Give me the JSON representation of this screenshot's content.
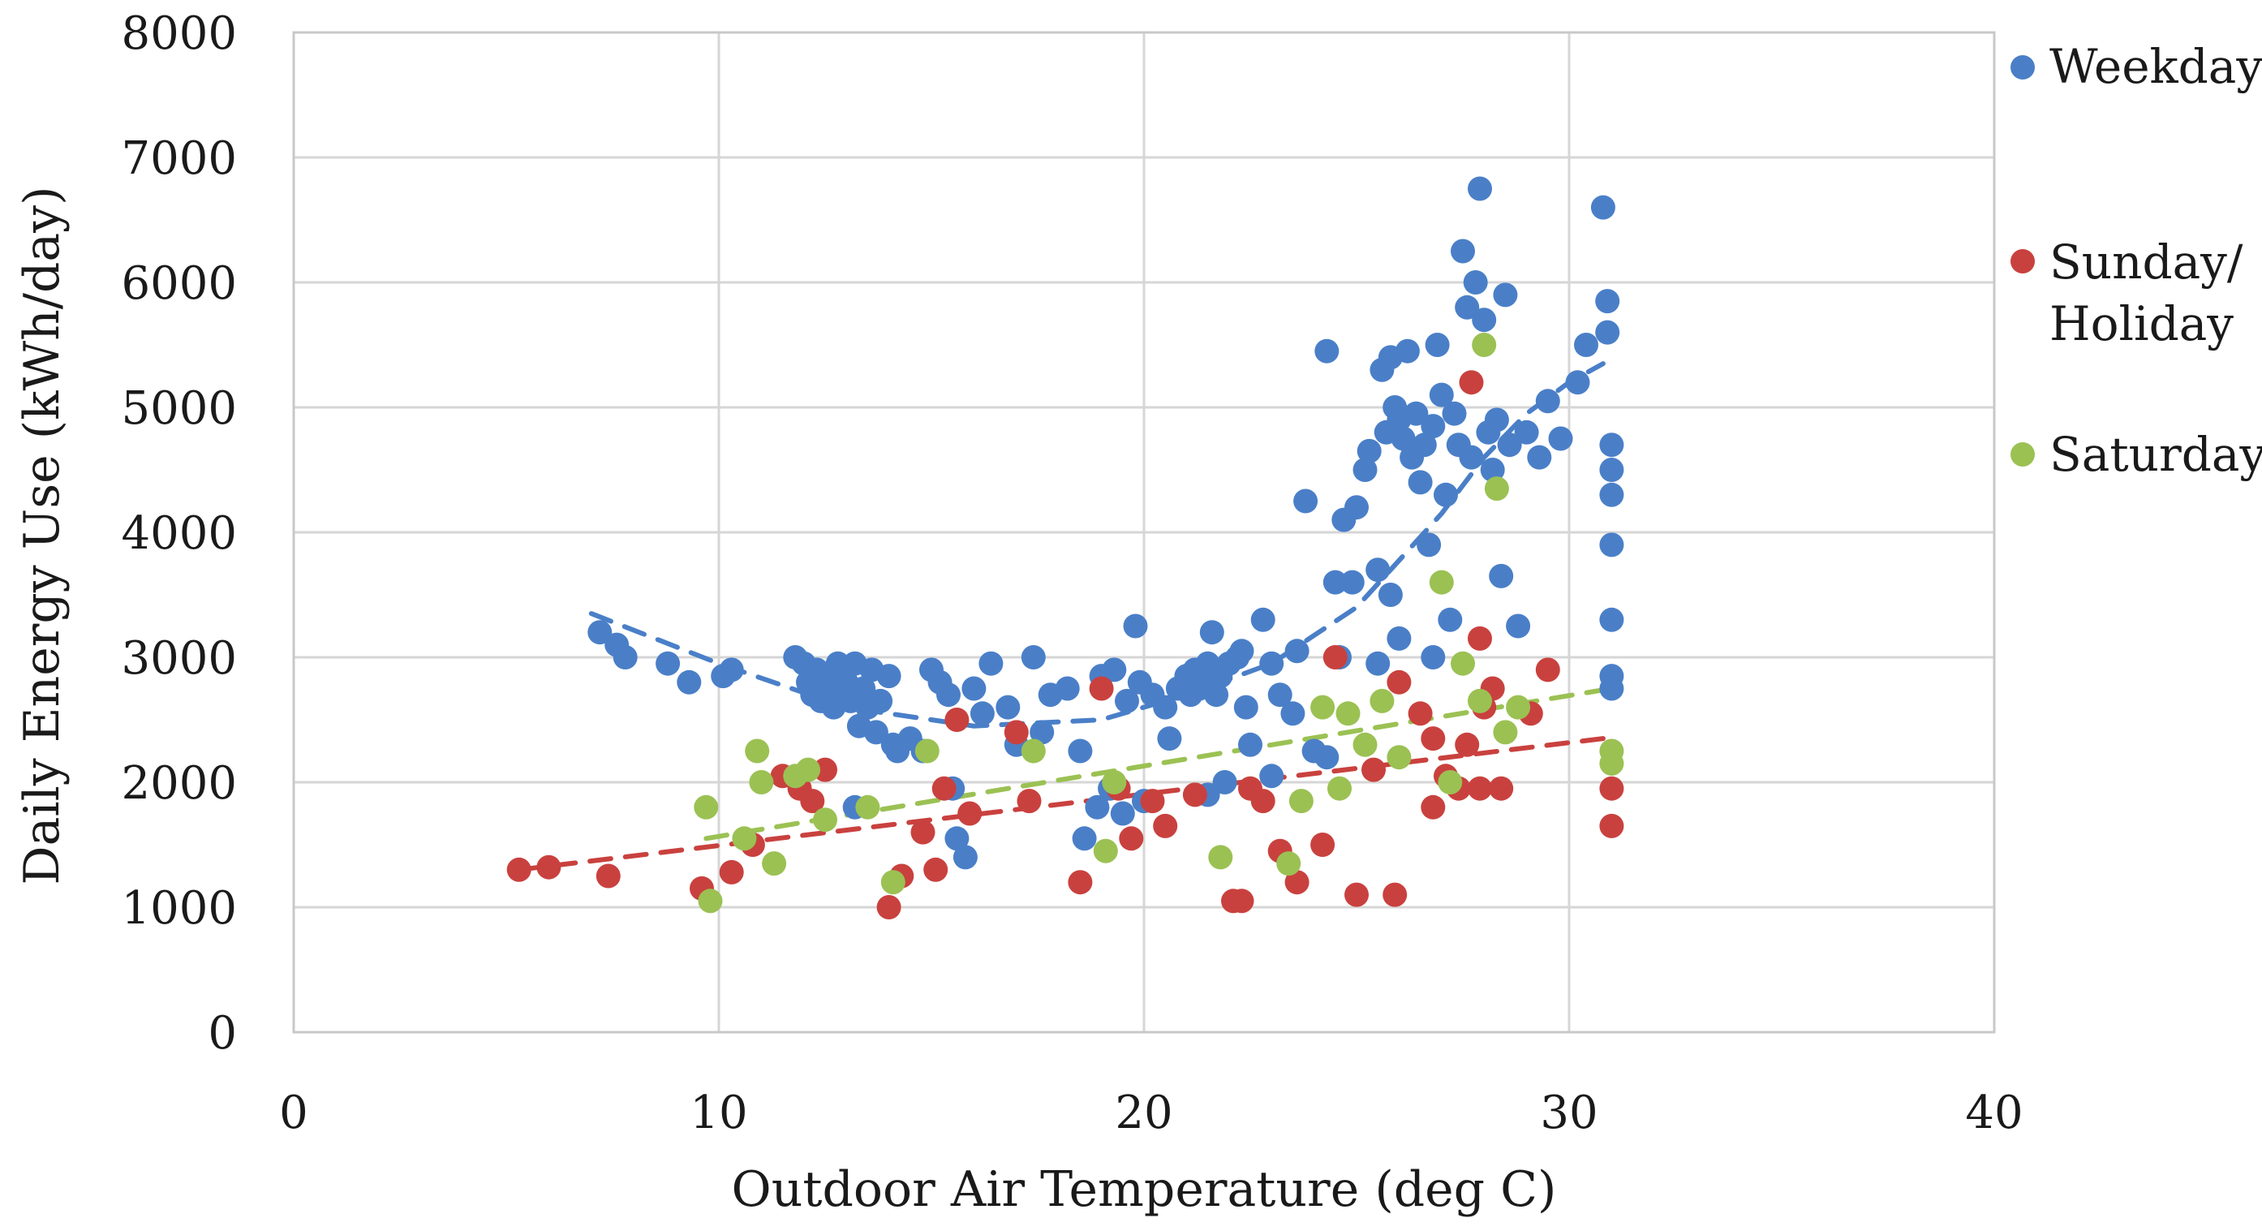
{
  "chart_data": {
    "type": "scatter",
    "title": "",
    "xlabel": "Outdoor Air Temperature (deg C)",
    "ylabel": "Daily Energy Use (kWh/day)",
    "xlim": [
      0,
      40
    ],
    "ylim": [
      0,
      8000
    ],
    "xticks": [
      0,
      10,
      20,
      30,
      40
    ],
    "yticks": [
      0,
      1000,
      2000,
      3000,
      4000,
      5000,
      6000,
      7000,
      8000
    ],
    "grid": true,
    "legend_position": "right",
    "series": [
      {
        "name": "Weekday",
        "color": "#4a7fc8",
        "points": [
          [
            7.2,
            3200
          ],
          [
            7.6,
            3100
          ],
          [
            7.8,
            3000
          ],
          [
            8.8,
            2950
          ],
          [
            9.3,
            2800
          ],
          [
            10.1,
            2850
          ],
          [
            10.3,
            2900
          ],
          [
            11.8,
            3000
          ],
          [
            12.0,
            2950
          ],
          [
            12.1,
            2800
          ],
          [
            12.2,
            2700
          ],
          [
            12.3,
            2900
          ],
          [
            12.4,
            2650
          ],
          [
            12.5,
            2850
          ],
          [
            12.6,
            2750
          ],
          [
            12.7,
            2600
          ],
          [
            12.8,
            2950
          ],
          [
            12.9,
            2700
          ],
          [
            13.0,
            2800
          ],
          [
            13.1,
            2650
          ],
          [
            13.2,
            2950
          ],
          [
            13.3,
            2450
          ],
          [
            13.4,
            2750
          ],
          [
            13.5,
            2600
          ],
          [
            13.6,
            2900
          ],
          [
            13.7,
            2400
          ],
          [
            13.8,
            2650
          ],
          [
            14.0,
            2850
          ],
          [
            14.1,
            2300
          ],
          [
            14.2,
            2250
          ],
          [
            14.5,
            2350
          ],
          [
            13.2,
            1800
          ],
          [
            14.8,
            2250
          ],
          [
            15.0,
            2900
          ],
          [
            15.2,
            2800
          ],
          [
            15.4,
            2700
          ],
          [
            15.5,
            1950
          ],
          [
            15.8,
            1400
          ],
          [
            15.6,
            1550
          ],
          [
            16.0,
            2750
          ],
          [
            16.2,
            2550
          ],
          [
            16.4,
            2950
          ],
          [
            16.8,
            2600
          ],
          [
            17.0,
            2300
          ],
          [
            17.4,
            3000
          ],
          [
            17.6,
            2400
          ],
          [
            17.8,
            2700
          ],
          [
            18.2,
            2750
          ],
          [
            18.5,
            2250
          ],
          [
            18.6,
            1550
          ],
          [
            19.0,
            2850
          ],
          [
            19.3,
            2900
          ],
          [
            19.6,
            2650
          ],
          [
            19.8,
            3250
          ],
          [
            19.9,
            2800
          ],
          [
            20.2,
            2700
          ],
          [
            20.5,
            2600
          ],
          [
            20.6,
            2350
          ],
          [
            20.8,
            2750
          ],
          [
            21.0,
            2850
          ],
          [
            21.1,
            2700
          ],
          [
            21.2,
            2900
          ],
          [
            21.3,
            2750
          ],
          [
            21.4,
            2800
          ],
          [
            21.5,
            2950
          ],
          [
            21.6,
            3200
          ],
          [
            21.7,
            2700
          ],
          [
            21.8,
            2850
          ],
          [
            22.0,
            2950
          ],
          [
            22.2,
            3000
          ],
          [
            22.4,
            2600
          ],
          [
            22.8,
            3300
          ],
          [
            23.0,
            2950
          ],
          [
            23.2,
            2700
          ],
          [
            23.5,
            2550
          ],
          [
            23.8,
            4250
          ],
          [
            24.0,
            2250
          ],
          [
            24.3,
            2200
          ],
          [
            24.5,
            3600
          ],
          [
            24.7,
            4100
          ],
          [
            24.9,
            3600
          ],
          [
            25.0,
            4200
          ],
          [
            24.3,
            5450
          ],
          [
            25.2,
            4500
          ],
          [
            25.3,
            4650
          ],
          [
            25.5,
            3700
          ],
          [
            25.6,
            5300
          ],
          [
            25.7,
            4800
          ],
          [
            25.8,
            5400
          ],
          [
            25.9,
            5000
          ],
          [
            26.0,
            4900
          ],
          [
            26.1,
            4750
          ],
          [
            26.2,
            5450
          ],
          [
            26.3,
            4600
          ],
          [
            26.4,
            4950
          ],
          [
            26.5,
            4400
          ],
          [
            26.6,
            4700
          ],
          [
            26.7,
            3900
          ],
          [
            26.8,
            4850
          ],
          [
            26.9,
            5500
          ],
          [
            27.0,
            5100
          ],
          [
            27.1,
            4300
          ],
          [
            27.2,
            3300
          ],
          [
            27.3,
            4950
          ],
          [
            27.4,
            4700
          ],
          [
            27.5,
            6250
          ],
          [
            27.6,
            5800
          ],
          [
            27.7,
            4600
          ],
          [
            27.8,
            6000
          ],
          [
            27.9,
            6750
          ],
          [
            28.0,
            5700
          ],
          [
            28.1,
            4800
          ],
          [
            28.2,
            4500
          ],
          [
            28.3,
            4900
          ],
          [
            28.4,
            3650
          ],
          [
            28.5,
            5900
          ],
          [
            28.6,
            4700
          ],
          [
            28.8,
            3250
          ],
          [
            29.0,
            4800
          ],
          [
            29.3,
            4600
          ],
          [
            29.5,
            5050
          ],
          [
            29.8,
            4750
          ],
          [
            30.2,
            5200
          ],
          [
            30.4,
            5500
          ],
          [
            30.8,
            6600
          ],
          [
            30.9,
            5850
          ],
          [
            30.9,
            5600
          ],
          [
            31.0,
            4700
          ],
          [
            31.0,
            4500
          ],
          [
            31.0,
            4300
          ],
          [
            31.0,
            3900
          ],
          [
            31.0,
            3300
          ],
          [
            31.0,
            2850
          ],
          [
            31.0,
            2750
          ],
          [
            26.0,
            3150
          ],
          [
            25.8,
            3500
          ],
          [
            24.6,
            3000
          ],
          [
            23.6,
            3050
          ],
          [
            22.3,
            3050
          ],
          [
            20.0,
            1850
          ],
          [
            19.5,
            1750
          ],
          [
            21.9,
            2000
          ],
          [
            22.5,
            2300
          ],
          [
            21.5,
            1900
          ],
          [
            23.0,
            2050
          ],
          [
            19.2,
            1950
          ],
          [
            18.9,
            1800
          ],
          [
            25.5,
            2950
          ],
          [
            26.8,
            3000
          ]
        ]
      },
      {
        "name": "Sunday/ Holiday",
        "color": "#c9413e",
        "points": [
          [
            5.3,
            1300
          ],
          [
            6.0,
            1320
          ],
          [
            7.4,
            1250
          ],
          [
            9.6,
            1150
          ],
          [
            10.3,
            1280
          ],
          [
            10.8,
            1500
          ],
          [
            11.5,
            2050
          ],
          [
            11.9,
            1950
          ],
          [
            12.2,
            1850
          ],
          [
            12.5,
            2100
          ],
          [
            14.0,
            1000
          ],
          [
            14.3,
            1250
          ],
          [
            14.8,
            1600
          ],
          [
            15.1,
            1300
          ],
          [
            15.3,
            1950
          ],
          [
            15.6,
            2500
          ],
          [
            15.9,
            1750
          ],
          [
            17.0,
            2400
          ],
          [
            17.3,
            1850
          ],
          [
            18.5,
            1200
          ],
          [
            19.0,
            2750
          ],
          [
            19.4,
            1950
          ],
          [
            19.7,
            1550
          ],
          [
            20.2,
            1850
          ],
          [
            20.5,
            1650
          ],
          [
            21.2,
            1900
          ],
          [
            22.1,
            1050
          ],
          [
            22.3,
            1050
          ],
          [
            22.5,
            1950
          ],
          [
            22.8,
            1850
          ],
          [
            23.2,
            1450
          ],
          [
            23.6,
            1200
          ],
          [
            24.2,
            1500
          ],
          [
            24.5,
            3000
          ],
          [
            25.0,
            1100
          ],
          [
            25.4,
            2100
          ],
          [
            25.9,
            1100
          ],
          [
            26.0,
            2800
          ],
          [
            26.5,
            2550
          ],
          [
            26.8,
            1800
          ],
          [
            27.1,
            2050
          ],
          [
            27.4,
            1950
          ],
          [
            27.6,
            2300
          ],
          [
            27.7,
            5200
          ],
          [
            27.9,
            3150
          ],
          [
            28.0,
            2600
          ],
          [
            28.2,
            2750
          ],
          [
            28.4,
            1950
          ],
          [
            29.1,
            2550
          ],
          [
            29.5,
            2900
          ],
          [
            31.0,
            1950
          ],
          [
            31.0,
            1650
          ],
          [
            27.9,
            1950
          ],
          [
            26.8,
            2350
          ]
        ]
      },
      {
        "name": "Saturday",
        "color": "#9bc153",
        "points": [
          [
            9.7,
            1800
          ],
          [
            9.8,
            1050
          ],
          [
            10.6,
            1550
          ],
          [
            10.9,
            2250
          ],
          [
            11.0,
            2000
          ],
          [
            11.3,
            1350
          ],
          [
            11.8,
            2050
          ],
          [
            12.1,
            2100
          ],
          [
            12.5,
            1700
          ],
          [
            13.5,
            1800
          ],
          [
            14.1,
            1200
          ],
          [
            14.9,
            2250
          ],
          [
            17.4,
            2250
          ],
          [
            19.1,
            1450
          ],
          [
            19.3,
            2000
          ],
          [
            21.8,
            1400
          ],
          [
            23.4,
            1350
          ],
          [
            23.7,
            1850
          ],
          [
            24.2,
            2600
          ],
          [
            24.6,
            1950
          ],
          [
            24.8,
            2550
          ],
          [
            25.2,
            2300
          ],
          [
            25.6,
            2650
          ],
          [
            26.0,
            2200
          ],
          [
            27.0,
            3600
          ],
          [
            27.2,
            2000
          ],
          [
            27.5,
            2950
          ],
          [
            27.9,
            2650
          ],
          [
            28.0,
            5500
          ],
          [
            28.3,
            4350
          ],
          [
            28.5,
            2400
          ],
          [
            28.8,
            2600
          ],
          [
            31.0,
            2250
          ],
          [
            31.0,
            2150
          ]
        ]
      }
    ],
    "trendlines": [
      {
        "series": "Weekday",
        "color": "#4a7fc8",
        "x": [
          7.0,
          10,
          13,
          16,
          19,
          21,
          23,
          25,
          27,
          28,
          29,
          30,
          30.8
        ],
        "y": [
          3350,
          2950,
          2600,
          2450,
          2500,
          2700,
          2950,
          3400,
          4150,
          4600,
          4950,
          5200,
          5350
        ]
      },
      {
        "series": "Sunday/ Holiday",
        "color": "#c9413e",
        "x": [
          5.3,
          30.8
        ],
        "y": [
          1300,
          2350
        ]
      },
      {
        "series": "Saturday",
        "color": "#9bc153",
        "x": [
          9.7,
          31
        ],
        "y": [
          1550,
          2750
        ]
      }
    ]
  }
}
